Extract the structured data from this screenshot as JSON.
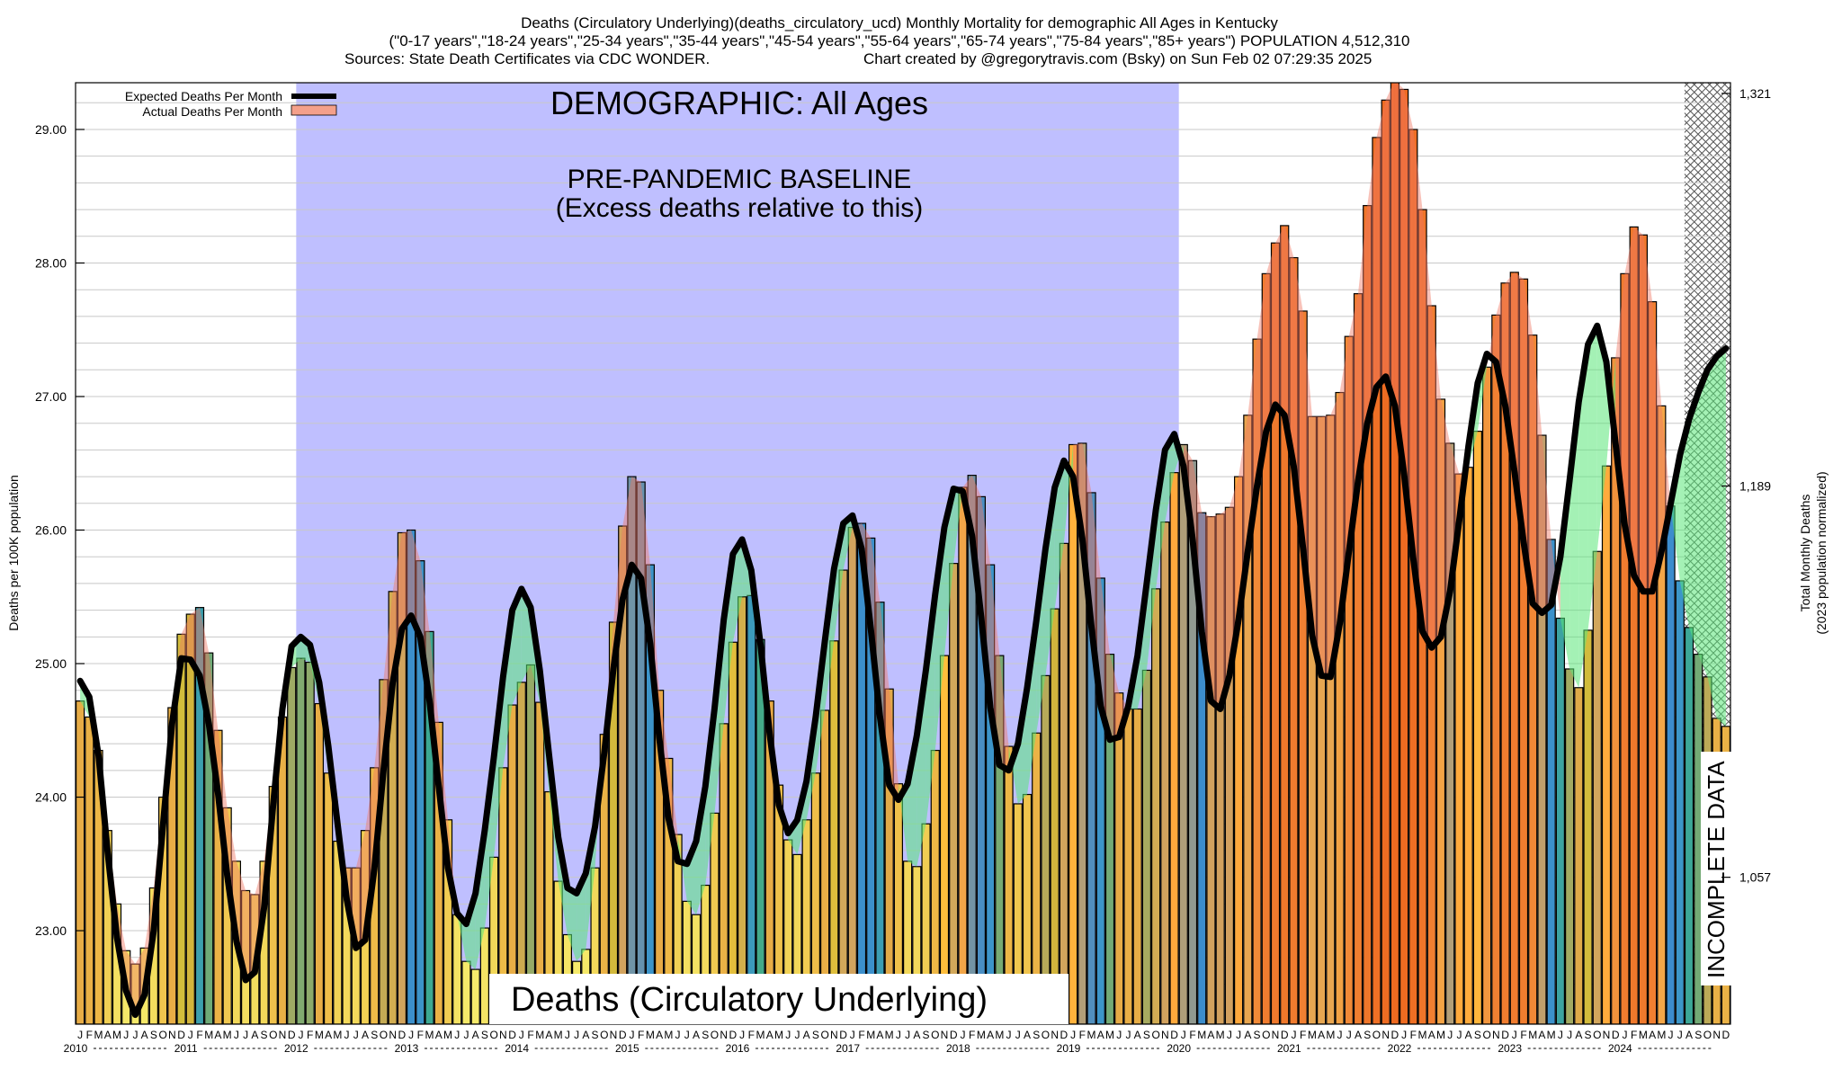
{
  "header": {
    "title": "Deaths (Circulatory Underlying)(deaths_circulatory_ucd) Monthly Mortality for demographic All Ages in Kentucky",
    "subtitle": "(\"0-17 years\",\"18-24 years\",\"25-34 years\",\"35-44 years\",\"45-54 years\",\"55-64 years\",\"65-74 years\",\"75-84 years\",\"85+ years\") POPULATION 4,512,310",
    "sources": "Sources: State Death Certificates via CDC WONDER.",
    "credit": "Chart created by @gregorytravis.com (Bsky) on Sun Feb 02 07:29:35 2025"
  },
  "chart_data": {
    "type": "bar",
    "title": "Deaths (Circulatory Underlying)",
    "demographic_label": "DEMOGRAPHIC: All Ages",
    "baseline_label_1": "PRE-PANDEMIC BASELINE",
    "baseline_label_2": "(Excess deaths relative to this)",
    "incomplete_label": "INCOMPLETE DATA",
    "ylabel_left": "Deaths per 100K population",
    "ylabel_right_1": "Total Monthly Deaths",
    "ylabel_right_2": "(2023 population normalized)",
    "ylim": [
      22.3,
      29.35
    ],
    "yticks": [
      "23.00",
      "24.00",
      "25.00",
      "26.00",
      "27.00",
      "28.00",
      "29.00"
    ],
    "right_ticks": [
      {
        "y": 23.4,
        "label": "1,057"
      },
      {
        "y": 26.33,
        "label": "1,189"
      },
      {
        "y": 29.27,
        "label": "1,321"
      }
    ],
    "baseline_range": [
      "2012-01",
      "2019-12"
    ],
    "incomplete_from": "2024-08",
    "start_year": 2010,
    "years": [
      "2010",
      "2011",
      "2012",
      "2013",
      "2014",
      "2015",
      "2016",
      "2017",
      "2018",
      "2019",
      "2020",
      "2021",
      "2022",
      "2023",
      "2024"
    ],
    "month_letters": [
      "J",
      "F",
      "M",
      "A",
      "M",
      "J",
      "J",
      "A",
      "S",
      "O",
      "N",
      "D"
    ],
    "legend": [
      {
        "label": "Expected Deaths Per Month",
        "color": "#000000"
      },
      {
        "label": "Actual Deaths Per Month",
        "color": "#f4a08a"
      }
    ],
    "series": [
      {
        "name": "Actual Deaths Per Month",
        "values": [
          24.72,
          24.6,
          24.35,
          23.75,
          23.2,
          22.85,
          22.75,
          22.87,
          23.32,
          24.0,
          24.67,
          25.22,
          25.37,
          25.42,
          25.08,
          24.5,
          23.92,
          23.52,
          23.3,
          23.27,
          23.52,
          24.08,
          24.6,
          24.97,
          25.04,
          25.01,
          24.7,
          24.18,
          23.67,
          23.47,
          23.47,
          23.75,
          24.22,
          24.88,
          25.54,
          25.98,
          26.0,
          25.77,
          25.24,
          24.56,
          23.83,
          23.12,
          22.77,
          22.71,
          23.02,
          23.55,
          24.22,
          24.69,
          24.86,
          24.99,
          24.71,
          24.04,
          23.37,
          22.97,
          22.77,
          22.86,
          23.47,
          24.47,
          25.31,
          26.03,
          26.4,
          26.36,
          25.74,
          24.8,
          24.29,
          23.72,
          23.22,
          23.12,
          23.34,
          23.88,
          24.55,
          25.16,
          25.5,
          25.51,
          25.18,
          24.72,
          24.09,
          23.68,
          23.57,
          23.83,
          24.18,
          24.65,
          25.17,
          25.7,
          26.02,
          26.05,
          25.94,
          25.46,
          24.81,
          24.1,
          23.52,
          23.48,
          23.8,
          24.35,
          25.06,
          25.75,
          26.32,
          26.41,
          26.25,
          25.74,
          25.06,
          24.38,
          23.95,
          24.02,
          24.48,
          24.91,
          25.41,
          25.9,
          26.64,
          26.65,
          26.28,
          25.64,
          25.07,
          24.78,
          24.66,
          24.66,
          24.95,
          25.56,
          26.06,
          26.43,
          26.64,
          26.52,
          26.13,
          26.1,
          26.12,
          26.17,
          26.4,
          26.86,
          27.43,
          27.92,
          28.15,
          28.28,
          28.04,
          27.64,
          26.85,
          26.85,
          26.86,
          27.03,
          27.45,
          27.77,
          28.43,
          28.94,
          29.22,
          29.37,
          29.3,
          29.0,
          28.4,
          27.68,
          26.98,
          26.65,
          26.42,
          26.47,
          26.74,
          27.22,
          27.61,
          27.85,
          27.93,
          27.88,
          27.46,
          26.71,
          25.93,
          25.34,
          24.96,
          24.82,
          25.25,
          25.84,
          26.48,
          27.29,
          27.92,
          28.27,
          28.21,
          27.71,
          26.93,
          26.18,
          25.62,
          25.27,
          25.07,
          24.9,
          24.59,
          24.53
        ]
      },
      {
        "name": "Expected Deaths Per Month",
        "values": [
          24.87,
          24.75,
          24.31,
          23.58,
          22.95,
          22.55,
          22.37,
          22.52,
          23.0,
          23.78,
          24.55,
          25.04,
          25.03,
          24.91,
          24.55,
          24.03,
          23.41,
          22.92,
          22.63,
          22.69,
          23.17,
          23.95,
          24.66,
          25.13,
          25.2,
          25.14,
          24.86,
          24.38,
          23.8,
          23.23,
          22.87,
          22.93,
          23.46,
          24.2,
          24.86,
          25.26,
          25.36,
          25.2,
          24.72,
          24.08,
          23.47,
          23.13,
          23.05,
          23.28,
          23.75,
          24.3,
          24.9,
          25.4,
          25.56,
          25.42,
          24.95,
          24.32,
          23.7,
          23.32,
          23.28,
          23.43,
          23.78,
          24.33,
          24.96,
          25.48,
          25.74,
          25.64,
          25.15,
          24.44,
          23.84,
          23.52,
          23.5,
          23.67,
          24.08,
          24.66,
          25.33,
          25.82,
          25.93,
          25.7,
          25.14,
          24.47,
          23.94,
          23.73,
          23.83,
          24.12,
          24.6,
          25.17,
          25.71,
          26.05,
          26.11,
          25.86,
          25.26,
          24.6,
          24.09,
          23.98,
          24.1,
          24.46,
          24.96,
          25.52,
          26.02,
          26.31,
          26.29,
          25.96,
          25.35,
          24.67,
          24.24,
          24.2,
          24.4,
          24.82,
          25.32,
          25.86,
          26.32,
          26.52,
          26.4,
          25.94,
          25.27,
          24.68,
          24.43,
          24.45,
          24.68,
          25.06,
          25.6,
          26.15,
          26.6,
          26.72,
          26.48,
          25.93,
          25.24,
          24.72,
          24.66,
          24.91,
          25.33,
          25.84,
          26.33,
          26.74,
          26.94,
          26.86,
          26.48,
          25.87,
          25.21,
          24.91,
          24.9,
          25.3,
          25.84,
          26.37,
          26.8,
          27.07,
          27.15,
          26.93,
          26.42,
          25.79,
          25.24,
          25.12,
          25.2,
          25.54,
          26.07,
          26.63,
          27.1,
          27.32,
          27.26,
          26.93,
          26.44,
          25.91,
          25.45,
          25.38,
          25.44,
          25.8,
          26.37,
          26.96,
          27.39,
          27.53,
          27.26,
          26.65,
          26.04,
          25.66,
          25.54,
          25.54,
          25.84,
          26.2,
          26.56,
          26.83,
          27.03,
          27.2,
          27.3,
          27.36
        ]
      }
    ]
  }
}
